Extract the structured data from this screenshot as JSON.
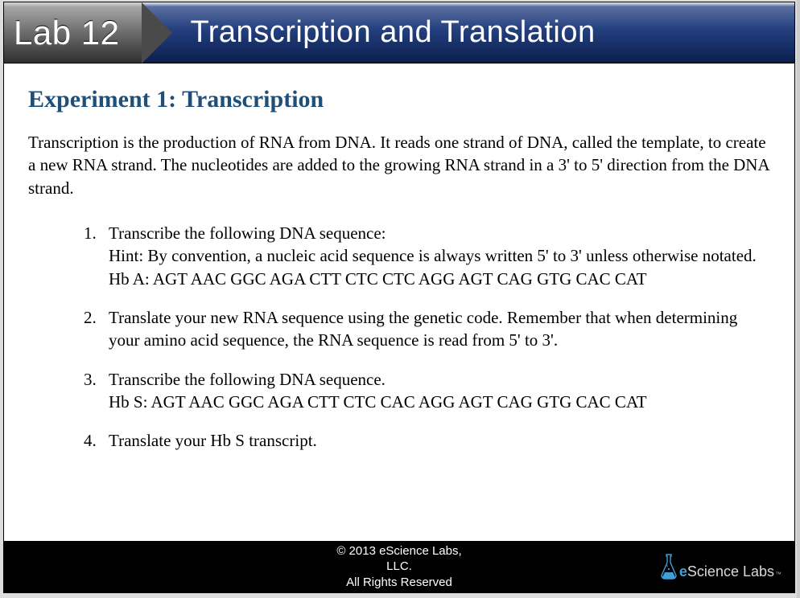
{
  "colors": {
    "heading": "#1f4e79",
    "header_gradient_top": "#5b6fa0",
    "header_gradient_bottom": "#0c1e4d",
    "badge_gradient_top": "#a5a5a5",
    "badge_gradient_bottom": "#2f2f2f",
    "footer_bg": "#000000",
    "logo_accent": "#3fa0d8",
    "body_text": "#000000"
  },
  "typography": {
    "heading_font": "Times New Roman",
    "body_font": "Times New Roman",
    "heading_size_pt": 22,
    "body_size_pt": 16,
    "banner_title_size_pt": 30,
    "banner_badge_size_pt": 32
  },
  "header": {
    "lab_label": "Lab 12",
    "title": "Transcription and Translation"
  },
  "content": {
    "experiment_title": "Experiment 1: Transcription",
    "intro": "Transcription is the production of RNA from DNA. It reads one strand of DNA, called the template, to create a new RNA strand. The nucleotides are added to the growing RNA strand in a 3' to 5' direction from the DNA strand.",
    "steps": [
      "Transcribe the following DNA sequence:\nHint: By convention, a nucleic acid sequence is always written 5' to 3' unless otherwise notated.\nHb A: AGT AAC GGC AGA CTT CTC CTC AGG AGT CAG GTG CAC CAT",
      "Translate your new RNA sequence using the genetic code. Remember that when determining your amino acid sequence, the RNA sequence is read from 5' to 3'.",
      "Transcribe the following DNA sequence.\nHb S: AGT AAC GGC AGA CTT CTC CAC AGG AGT CAG GTG CAC CAT",
      "Translate your Hb S transcript."
    ]
  },
  "footer": {
    "line1": "© 2013 eScience Labs,",
    "line2": "LLC.",
    "line3": "All Rights Reserved",
    "logo_plain": "Science Labs",
    "logo_prefix": "e"
  }
}
